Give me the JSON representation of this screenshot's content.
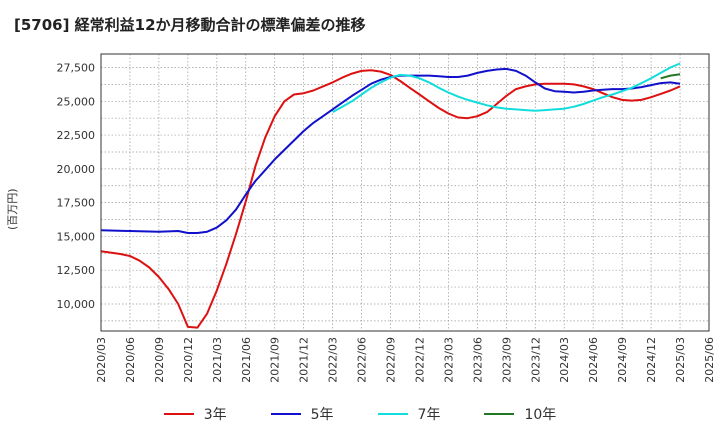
{
  "chart_data": {
    "type": "line",
    "title": "[5706]  経常利益12か月移動合計の標準偏差の推移",
    "ylabel": "(百万円)",
    "xlabel": "",
    "ylim": [
      8000,
      28500
    ],
    "yticks": [
      10000,
      12500,
      15000,
      17500,
      20000,
      22500,
      25000,
      27500
    ],
    "ytick_labels": [
      "10,000",
      "12,500",
      "15,000",
      "17,500",
      "20,000",
      "22,500",
      "25,000",
      "27,500"
    ],
    "xlim": [
      "2020-03",
      "2025-06"
    ],
    "xtick_labels": [
      "2020/03",
      "2020/06",
      "2020/09",
      "2020/12",
      "2021/03",
      "2021/06",
      "2021/09",
      "2021/12",
      "2022/03",
      "2022/06",
      "2022/09",
      "2022/12",
      "2023/03",
      "2023/06",
      "2023/09",
      "2023/12",
      "2024/03",
      "2024/06",
      "2024/09",
      "2024/12",
      "2025/03",
      "2025/06"
    ],
    "grid": true,
    "legend_position": "bottom",
    "series": [
      {
        "name": "3年",
        "color": "#dd1111",
        "points": [
          [
            "2020-03",
            13900
          ],
          [
            "2020-04",
            13800
          ],
          [
            "2020-05",
            13700
          ],
          [
            "2020-06",
            13550
          ],
          [
            "2020-07",
            13200
          ],
          [
            "2020-08",
            12700
          ],
          [
            "2020-09",
            12000
          ],
          [
            "2020-10",
            11100
          ],
          [
            "2020-11",
            10000
          ],
          [
            "2020-12",
            8300
          ],
          [
            "2021-01",
            8250
          ],
          [
            "2021-02",
            9300
          ],
          [
            "2021-03",
            11000
          ],
          [
            "2021-04",
            13000
          ],
          [
            "2021-05",
            15200
          ],
          [
            "2021-06",
            17600
          ],
          [
            "2021-07",
            20200
          ],
          [
            "2021-08",
            22300
          ],
          [
            "2021-09",
            23900
          ],
          [
            "2021-10",
            25000
          ],
          [
            "2021-11",
            25500
          ],
          [
            "2021-12",
            25600
          ],
          [
            "2022-01",
            25800
          ],
          [
            "2022-02",
            26100
          ],
          [
            "2022-03",
            26400
          ],
          [
            "2022-04",
            26750
          ],
          [
            "2022-05",
            27050
          ],
          [
            "2022-06",
            27250
          ],
          [
            "2022-07",
            27300
          ],
          [
            "2022-08",
            27200
          ],
          [
            "2022-09",
            26950
          ],
          [
            "2022-10",
            26500
          ],
          [
            "2022-11",
            26000
          ],
          [
            "2022-12",
            25500
          ],
          [
            "2023-01",
            25000
          ],
          [
            "2023-02",
            24500
          ],
          [
            "2023-03",
            24100
          ],
          [
            "2023-04",
            23800
          ],
          [
            "2023-05",
            23750
          ],
          [
            "2023-06",
            23900
          ],
          [
            "2023-07",
            24200
          ],
          [
            "2023-08",
            24800
          ],
          [
            "2023-09",
            25400
          ],
          [
            "2023-10",
            25900
          ],
          [
            "2023-11",
            26100
          ],
          [
            "2023-12",
            26250
          ],
          [
            "2024-01",
            26300
          ],
          [
            "2024-02",
            26300
          ],
          [
            "2024-03",
            26300
          ],
          [
            "2024-04",
            26250
          ],
          [
            "2024-05",
            26100
          ],
          [
            "2024-06",
            25900
          ],
          [
            "2024-07",
            25600
          ],
          [
            "2024-08",
            25300
          ],
          [
            "2024-09",
            25100
          ],
          [
            "2024-10",
            25050
          ],
          [
            "2024-11",
            25100
          ],
          [
            "2024-12",
            25300
          ],
          [
            "2025-01",
            25550
          ],
          [
            "2025-02",
            25800
          ],
          [
            "2025-03",
            26100
          ]
        ]
      },
      {
        "name": "5年",
        "color": "#1111cc",
        "points": [
          [
            "2020-03",
            15450
          ],
          [
            "2020-06",
            15400
          ],
          [
            "2020-09",
            15350
          ],
          [
            "2020-11",
            15400
          ],
          [
            "2020-12",
            15250
          ],
          [
            "2021-01",
            15250
          ],
          [
            "2021-02",
            15350
          ],
          [
            "2021-03",
            15650
          ],
          [
            "2021-04",
            16200
          ],
          [
            "2021-05",
            17000
          ],
          [
            "2021-06",
            18100
          ],
          [
            "2021-07",
            19100
          ],
          [
            "2021-08",
            19900
          ],
          [
            "2021-09",
            20700
          ],
          [
            "2021-10",
            21400
          ],
          [
            "2021-11",
            22100
          ],
          [
            "2021-12",
            22800
          ],
          [
            "2022-01",
            23400
          ],
          [
            "2022-02",
            23900
          ],
          [
            "2022-03",
            24400
          ],
          [
            "2022-04",
            24900
          ],
          [
            "2022-05",
            25400
          ],
          [
            "2022-06",
            25850
          ],
          [
            "2022-07",
            26300
          ],
          [
            "2022-08",
            26600
          ],
          [
            "2022-09",
            26800
          ],
          [
            "2022-10",
            26900
          ],
          [
            "2022-12",
            26900
          ],
          [
            "2023-01",
            26900
          ],
          [
            "2023-02",
            26850
          ],
          [
            "2023-03",
            26800
          ],
          [
            "2023-04",
            26800
          ],
          [
            "2023-05",
            26900
          ],
          [
            "2023-06",
            27100
          ],
          [
            "2023-07",
            27250
          ],
          [
            "2023-08",
            27350
          ],
          [
            "2023-09",
            27400
          ],
          [
            "2023-10",
            27250
          ],
          [
            "2023-11",
            26900
          ],
          [
            "2023-12",
            26400
          ],
          [
            "2024-01",
            25950
          ],
          [
            "2024-02",
            25750
          ],
          [
            "2024-03",
            25700
          ],
          [
            "2024-04",
            25650
          ],
          [
            "2024-05",
            25700
          ],
          [
            "2024-06",
            25800
          ],
          [
            "2024-07",
            25850
          ],
          [
            "2024-08",
            25900
          ],
          [
            "2024-09",
            25900
          ],
          [
            "2024-10",
            25950
          ],
          [
            "2024-11",
            26050
          ],
          [
            "2024-12",
            26200
          ],
          [
            "2025-01",
            26350
          ],
          [
            "2025-02",
            26400
          ],
          [
            "2025-03",
            26300
          ]
        ]
      },
      {
        "name": "7年",
        "color": "#11dddd",
        "points": [
          [
            "2022-03",
            24200
          ],
          [
            "2022-04",
            24600
          ],
          [
            "2022-05",
            25000
          ],
          [
            "2022-06",
            25500
          ],
          [
            "2022-07",
            26000
          ],
          [
            "2022-08",
            26400
          ],
          [
            "2022-09",
            26750
          ],
          [
            "2022-10",
            26950
          ],
          [
            "2022-11",
            26900
          ],
          [
            "2022-12",
            26700
          ],
          [
            "2023-01",
            26400
          ],
          [
            "2023-02",
            26000
          ],
          [
            "2023-03",
            25650
          ],
          [
            "2023-04",
            25350
          ],
          [
            "2023-05",
            25100
          ],
          [
            "2023-06",
            24900
          ],
          [
            "2023-07",
            24700
          ],
          [
            "2023-08",
            24550
          ],
          [
            "2023-09",
            24450
          ],
          [
            "2023-10",
            24400
          ],
          [
            "2023-11",
            24350
          ],
          [
            "2023-12",
            24300
          ],
          [
            "2024-01",
            24350
          ],
          [
            "2024-02",
            24400
          ],
          [
            "2024-03",
            24450
          ],
          [
            "2024-04",
            24600
          ],
          [
            "2024-05",
            24800
          ],
          [
            "2024-06",
            25050
          ],
          [
            "2024-07",
            25300
          ],
          [
            "2024-08",
            25500
          ],
          [
            "2024-09",
            25750
          ],
          [
            "2024-10",
            26000
          ],
          [
            "2024-11",
            26350
          ],
          [
            "2024-12",
            26700
          ],
          [
            "2025-01",
            27100
          ],
          [
            "2025-02",
            27500
          ],
          [
            "2025-03",
            27800
          ]
        ]
      },
      {
        "name": "10年",
        "color": "#227722",
        "points": [
          [
            "2025-01",
            26700
          ],
          [
            "2025-02",
            26900
          ],
          [
            "2025-03",
            27000
          ]
        ]
      }
    ]
  }
}
